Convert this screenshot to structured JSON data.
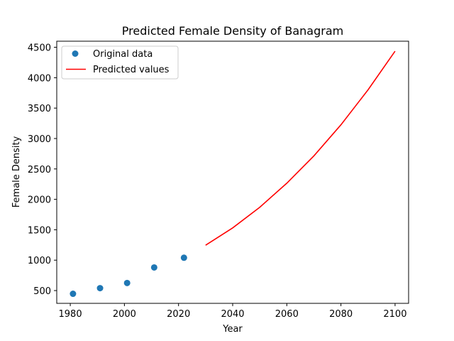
{
  "chart_data": {
    "type": "scatter+line",
    "title": "Predicted Female Density of Banagram",
    "xlabel": "Year",
    "ylabel": "Female Density",
    "xlim": [
      1975,
      2105
    ],
    "ylim": [
      290,
      4600
    ],
    "xticks": [
      1980,
      2000,
      2020,
      2040,
      2060,
      2080,
      2100
    ],
    "yticks": [
      500,
      1000,
      1500,
      2000,
      2500,
      3000,
      3500,
      4000,
      4500
    ],
    "grid": false,
    "legend_position": "upper left",
    "series": [
      {
        "name": "Original data",
        "kind": "scatter",
        "color": "#1f77b4",
        "x": [
          1981,
          1991,
          2001,
          2011,
          2022
        ],
        "y": [
          447,
          540,
          625,
          880,
          1040
        ]
      },
      {
        "name": "Predicted values",
        "kind": "line",
        "color": "#ff0000",
        "x": [
          2030,
          2040,
          2050,
          2060,
          2070,
          2080,
          2090,
          2100
        ],
        "y": [
          1245,
          1530,
          1870,
          2265,
          2715,
          3225,
          3800,
          4435
        ]
      }
    ]
  }
}
